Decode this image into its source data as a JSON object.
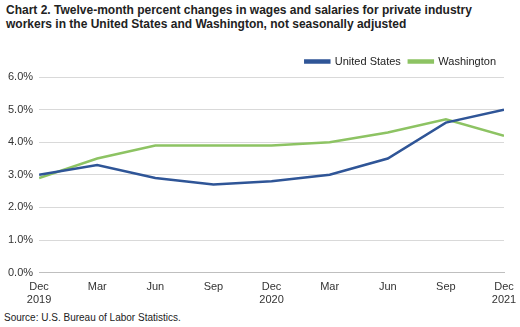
{
  "chart_data": {
    "type": "line",
    "title": "Chart 2. Twelve-month percent changes in wages and salaries for private industry workers in the United States and Washington, not seasonally adjusted",
    "annotations": [
      "Source: U.S. Bureau of Labor Statistics."
    ],
    "categories": [
      "Dec 2019",
      "Mar",
      "Jun",
      "Sep",
      "Dec 2020",
      "Mar",
      "Jun",
      "Sep",
      "Dec 2021"
    ],
    "series": [
      {
        "name": "United States",
        "color": "#2f5597",
        "values": [
          3.0,
          3.3,
          2.9,
          2.7,
          2.8,
          3.0,
          3.5,
          4.6,
          5.0
        ]
      },
      {
        "name": "Washington",
        "color": "#8dc363",
        "values": [
          2.9,
          3.5,
          3.9,
          3.9,
          3.9,
          4.0,
          4.3,
          4.7,
          4.2
        ]
      }
    ],
    "ylim": [
      0,
      6
    ],
    "yticks": [
      {
        "value": 0,
        "label": "0.0%"
      },
      {
        "value": 1,
        "label": "1.0%"
      },
      {
        "value": 2,
        "label": "2.0%"
      },
      {
        "value": 3,
        "label": "3.0%"
      },
      {
        "value": 4,
        "label": "4.0%"
      },
      {
        "value": 5,
        "label": "5.0%"
      },
      {
        "value": 6,
        "label": "6.0%"
      }
    ],
    "grid": true,
    "legend": "top"
  }
}
